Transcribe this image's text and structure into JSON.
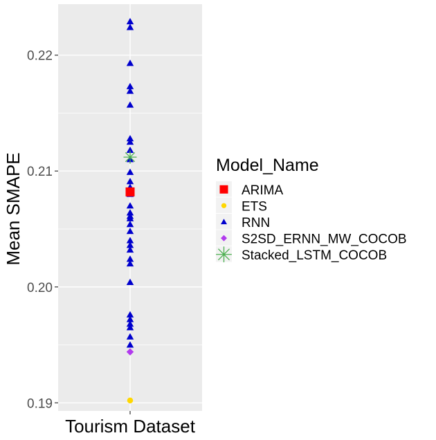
{
  "chart_data": {
    "type": "scatter",
    "ylabel": "Mean SMAPE",
    "categories": [
      "Tourism Dataset"
    ],
    "ylim": [
      0.1893,
      0.2244
    ],
    "y_ticks": [
      {
        "value": 0.19,
        "label": "0.19"
      },
      {
        "value": 0.2,
        "label": "0.20"
      },
      {
        "value": 0.21,
        "label": "0.21"
      },
      {
        "value": 0.22,
        "label": "0.22"
      }
    ],
    "legend": {
      "title": "Model_Name",
      "placement": "right"
    },
    "series": [
      {
        "name": "ARIMA",
        "shape": "square",
        "color": "#FF0000",
        "points": [
          {
            "x": "Tourism Dataset",
            "y": 0.2082
          }
        ]
      },
      {
        "name": "ETS",
        "shape": "circle",
        "color": "#FFD700",
        "points": [
          {
            "x": "Tourism Dataset",
            "y": 0.1902
          }
        ]
      },
      {
        "name": "RNN",
        "shape": "triangle",
        "color": "#0000CD",
        "points": [
          {
            "x": "Tourism Dataset",
            "y": 0.2229
          },
          {
            "x": "Tourism Dataset",
            "y": 0.2224
          },
          {
            "x": "Tourism Dataset",
            "y": 0.2193
          },
          {
            "x": "Tourism Dataset",
            "y": 0.2173
          },
          {
            "x": "Tourism Dataset",
            "y": 0.2169
          },
          {
            "x": "Tourism Dataset",
            "y": 0.2157
          },
          {
            "x": "Tourism Dataset",
            "y": 0.2128
          },
          {
            "x": "Tourism Dataset",
            "y": 0.2125
          },
          {
            "x": "Tourism Dataset",
            "y": 0.2118
          },
          {
            "x": "Tourism Dataset",
            "y": 0.211
          },
          {
            "x": "Tourism Dataset",
            "y": 0.2099
          },
          {
            "x": "Tourism Dataset",
            "y": 0.2091
          },
          {
            "x": "Tourism Dataset",
            "y": 0.2086
          },
          {
            "x": "Tourism Dataset",
            "y": 0.208
          },
          {
            "x": "Tourism Dataset",
            "y": 0.207
          },
          {
            "x": "Tourism Dataset",
            "y": 0.2064
          },
          {
            "x": "Tourism Dataset",
            "y": 0.2061
          },
          {
            "x": "Tourism Dataset",
            "y": 0.2059
          },
          {
            "x": "Tourism Dataset",
            "y": 0.2054
          },
          {
            "x": "Tourism Dataset",
            "y": 0.2048
          },
          {
            "x": "Tourism Dataset",
            "y": 0.204
          },
          {
            "x": "Tourism Dataset",
            "y": 0.2036
          },
          {
            "x": "Tourism Dataset",
            "y": 0.2032
          },
          {
            "x": "Tourism Dataset",
            "y": 0.2024
          },
          {
            "x": "Tourism Dataset",
            "y": 0.202
          },
          {
            "x": "Tourism Dataset",
            "y": 0.2004
          },
          {
            "x": "Tourism Dataset",
            "y": 0.1976
          },
          {
            "x": "Tourism Dataset",
            "y": 0.1972
          },
          {
            "x": "Tourism Dataset",
            "y": 0.1968
          },
          {
            "x": "Tourism Dataset",
            "y": 0.1965
          },
          {
            "x": "Tourism Dataset",
            "y": 0.1957
          },
          {
            "x": "Tourism Dataset",
            "y": 0.195
          }
        ]
      },
      {
        "name": "S2SD_ERNN_MW_COCOB",
        "shape": "diamond",
        "color": "#B23AEE",
        "points": [
          {
            "x": "Tourism Dataset",
            "y": 0.1944
          }
        ]
      },
      {
        "name": "Stacked_LSTM_COCOB",
        "shape": "asterisk",
        "color": "#4CAF50",
        "points": [
          {
            "x": "Tourism Dataset",
            "y": 0.2112
          }
        ]
      }
    ],
    "grid": true,
    "panel_color": "#EBEBEB"
  }
}
